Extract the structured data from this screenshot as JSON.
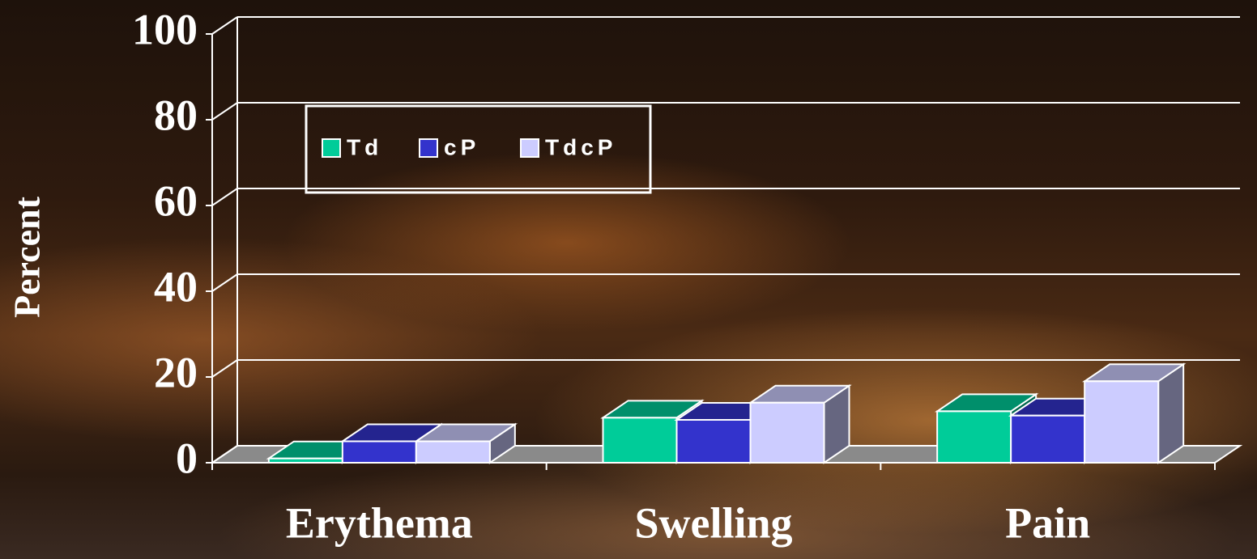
{
  "chart_data": {
    "type": "bar3d",
    "ylabel": "Percent",
    "categories": [
      "Erythema",
      "Swelling",
      "Pain"
    ],
    "series": [
      {
        "name": "Td",
        "color": "#00cc99",
        "values": [
          1,
          10.5,
          12
        ]
      },
      {
        "name": "cP",
        "color": "#3333cc",
        "values": [
          5,
          10,
          11
        ]
      },
      {
        "name": "TdcP",
        "color": "#ccccff",
        "values": [
          5,
          14,
          19
        ]
      }
    ],
    "ylim": [
      0,
      100
    ],
    "yticks": [
      0,
      20,
      40,
      60,
      80,
      100
    ],
    "grid": true
  }
}
